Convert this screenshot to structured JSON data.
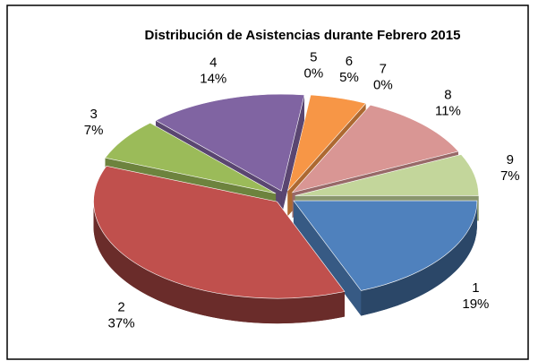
{
  "chart_data": {
    "type": "pie3d",
    "title": "Distribución de Asistencias durante Febrero 2015",
    "categories": [
      "1",
      "2",
      "3",
      "4",
      "5",
      "6",
      "7",
      "8",
      "9"
    ],
    "values": [
      19,
      37,
      7,
      14,
      0,
      5,
      0,
      11,
      7
    ],
    "value_labels": [
      "19%",
      "37%",
      "7%",
      "14%",
      "0%",
      "5%",
      "0%",
      "11%",
      "7%"
    ],
    "colors": [
      "#4f81bd",
      "#c0504d",
      "#9bbb59",
      "#8064a2",
      "#4bacc6",
      "#f79646",
      "#4f6fa8",
      "#d99694",
      "#c3d69b"
    ]
  }
}
